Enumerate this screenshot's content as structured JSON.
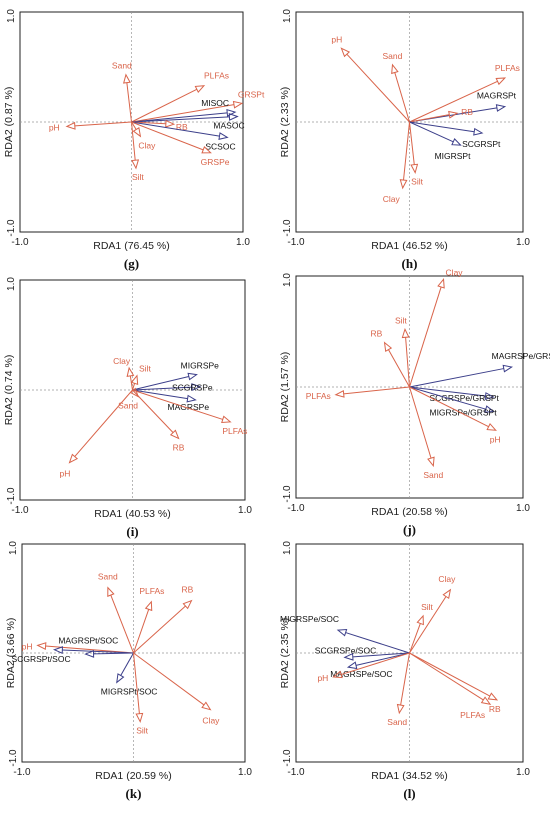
{
  "chart_data": [
    {
      "type": "scatter",
      "panel_label": "(g)",
      "xlabel": "RDA1 (76.45 %)",
      "ylabel": "RDA2 (0.87 %)",
      "xlim": [
        -1.0,
        1.0
      ],
      "ylim": [
        -1.0,
        1.0
      ],
      "x_ticks": [
        "-1.0",
        "1.0"
      ],
      "y_ticks": [
        "1.0",
        "-1.0"
      ],
      "vectors": [
        {
          "name": "Sand",
          "x": -0.05,
          "y": 0.43,
          "group": "explanatory"
        },
        {
          "name": "PLFAs",
          "x": 0.65,
          "y": 0.33,
          "group": "explanatory"
        },
        {
          "name": "GRSPt",
          "x": 0.99,
          "y": 0.17,
          "group": "explanatory"
        },
        {
          "name": "MISOC",
          "x": 0.93,
          "y": 0.09,
          "group": "response"
        },
        {
          "name": "MASOC",
          "x": 0.95,
          "y": 0.05,
          "group": "response"
        },
        {
          "name": "RB",
          "x": 0.38,
          "y": -0.02,
          "group": "explanatory"
        },
        {
          "name": "SCSOC",
          "x": 0.86,
          "y": -0.14,
          "group": "response"
        },
        {
          "name": "GRSPe",
          "x": 0.71,
          "y": -0.28,
          "group": "explanatory"
        },
        {
          "name": "pH",
          "x": -0.58,
          "y": -0.04,
          "group": "explanatory"
        },
        {
          "name": "Clay",
          "x": 0.08,
          "y": -0.13,
          "group": "explanatory"
        },
        {
          "name": "Silt",
          "x": 0.04,
          "y": -0.42,
          "group": "explanatory"
        }
      ]
    },
    {
      "type": "scatter",
      "panel_label": "(h)",
      "xlabel": "RDA1 (46.52 %)",
      "ylabel": "RDA2 (2.33 %)",
      "xlim": [
        -1.0,
        1.0
      ],
      "ylim": [
        -1.0,
        1.0
      ],
      "x_ticks": [
        "-1.0",
        "1.0"
      ],
      "y_ticks": [
        "1.0",
        "-1.0"
      ],
      "vectors": [
        {
          "name": "pH",
          "x": -0.6,
          "y": 0.67,
          "group": "explanatory"
        },
        {
          "name": "Sand",
          "x": -0.15,
          "y": 0.52,
          "group": "explanatory"
        },
        {
          "name": "PLFAs",
          "x": 0.84,
          "y": 0.4,
          "group": "explanatory"
        },
        {
          "name": "MAGRSPt",
          "x": 0.84,
          "y": 0.14,
          "group": "response"
        },
        {
          "name": "RB",
          "x": 0.42,
          "y": 0.08,
          "group": "explanatory"
        },
        {
          "name": "SCGRSPt",
          "x": 0.64,
          "y": -0.1,
          "group": "response"
        },
        {
          "name": "MIGRSPt",
          "x": 0.45,
          "y": -0.21,
          "group": "response"
        },
        {
          "name": "Silt",
          "x": 0.05,
          "y": -0.46,
          "group": "explanatory"
        },
        {
          "name": "Clay",
          "x": -0.06,
          "y": -0.6,
          "group": "explanatory"
        }
      ]
    },
    {
      "type": "scatter",
      "panel_label": "(i)",
      "xlabel": "RDA1 (40.53 %)",
      "ylabel": "RDA2 (0.74 %)",
      "xlim": [
        -1.0,
        1.0
      ],
      "ylim": [
        -1.0,
        1.0
      ],
      "x_ticks": [
        "-1.0",
        "1.0"
      ],
      "y_ticks": [
        "1.0",
        "-1.0"
      ],
      "vectors": [
        {
          "name": "Clay",
          "x": -0.03,
          "y": 0.2,
          "group": "explanatory"
        },
        {
          "name": "Silt",
          "x": 0.04,
          "y": 0.13,
          "group": "explanatory"
        },
        {
          "name": "MIGRSPe",
          "x": 0.57,
          "y": 0.14,
          "group": "response"
        },
        {
          "name": "SCGRSPe",
          "x": 0.6,
          "y": 0.03,
          "group": "response"
        },
        {
          "name": "MAGRSPe",
          "x": 0.56,
          "y": -0.09,
          "group": "response"
        },
        {
          "name": "PLFAs",
          "x": 0.87,
          "y": -0.29,
          "group": "explanatory"
        },
        {
          "name": "Sand",
          "x": 0.05,
          "y": -0.06,
          "group": "explanatory"
        },
        {
          "name": "RB",
          "x": 0.41,
          "y": -0.44,
          "group": "explanatory"
        },
        {
          "name": "pH",
          "x": -0.56,
          "y": -0.66,
          "group": "explanatory"
        }
      ]
    },
    {
      "type": "scatter",
      "panel_label": "(j)",
      "xlabel": "RDA1 (20.58 %)",
      "ylabel": "RDA2 (1.57 %)",
      "xlim": [
        -1.0,
        1.0
      ],
      "ylim": [
        -1.0,
        1.0
      ],
      "x_ticks": [
        "-1.0",
        "1.0"
      ],
      "y_ticks": [
        "1.0",
        "-1.0"
      ],
      "vectors": [
        {
          "name": "Clay",
          "x": 0.3,
          "y": 0.97,
          "group": "explanatory"
        },
        {
          "name": "Silt",
          "x": -0.04,
          "y": 0.52,
          "group": "explanatory"
        },
        {
          "name": "RB",
          "x": -0.22,
          "y": 0.4,
          "group": "explanatory"
        },
        {
          "name": "MAGRSPe/GRSPt",
          "x": 0.9,
          "y": 0.18,
          "group": "response"
        },
        {
          "name": "PLFAs",
          "x": -0.65,
          "y": -0.07,
          "group": "explanatory"
        },
        {
          "name": "SCGRSPe/GRSPt",
          "x": 0.74,
          "y": -0.09,
          "group": "response"
        },
        {
          "name": "MIGRSPe/GRSPt",
          "x": 0.74,
          "y": -0.22,
          "group": "response"
        },
        {
          "name": "pH",
          "x": 0.76,
          "y": -0.39,
          "group": "explanatory"
        },
        {
          "name": "Sand",
          "x": 0.21,
          "y": -0.71,
          "group": "explanatory"
        }
      ]
    },
    {
      "type": "scatter",
      "panel_label": "(k)",
      "xlabel": "RDA1 (20.59 %)",
      "ylabel": "RDA2 (3.66 %)",
      "xlim": [
        -1.0,
        1.0
      ],
      "ylim": [
        -1.0,
        1.0
      ],
      "x_ticks": [
        "-1.0",
        "1.0"
      ],
      "y_ticks": [
        "1.0",
        "-1.0"
      ],
      "vectors": [
        {
          "name": "Sand",
          "x": -0.23,
          "y": 0.6,
          "group": "explanatory"
        },
        {
          "name": "PLFAs",
          "x": 0.16,
          "y": 0.47,
          "group": "explanatory"
        },
        {
          "name": "RB",
          "x": 0.52,
          "y": 0.48,
          "group": "explanatory"
        },
        {
          "name": "pH",
          "x": -0.86,
          "y": 0.07,
          "group": "explanatory"
        },
        {
          "name": "MAGRSPt/SOC",
          "x": -0.71,
          "y": 0.03,
          "group": "response"
        },
        {
          "name": "SCGRSPt/SOC",
          "x": -0.43,
          "y": -0.01,
          "group": "response"
        },
        {
          "name": "MIGRSPt/SOC",
          "x": -0.15,
          "y": -0.27,
          "group": "response"
        },
        {
          "name": "Clay",
          "x": 0.69,
          "y": -0.52,
          "group": "explanatory"
        },
        {
          "name": "Silt",
          "x": 0.06,
          "y": -0.63,
          "group": "explanatory"
        }
      ]
    },
    {
      "type": "scatter",
      "panel_label": "(l)",
      "xlabel": "RDA1 (34.52 %)",
      "ylabel": "RDA2 (2.35 %)",
      "xlim": [
        -1.0,
        1.0
      ],
      "ylim": [
        -1.0,
        1.0
      ],
      "x_ticks": [
        "-1.0",
        "1.0"
      ],
      "y_ticks": [
        "1.0",
        "-1.0"
      ],
      "vectors": [
        {
          "name": "Clay",
          "x": 0.36,
          "y": 0.58,
          "group": "explanatory"
        },
        {
          "name": "Silt",
          "x": 0.12,
          "y": 0.34,
          "group": "explanatory"
        },
        {
          "name": "MIGRSPe/SOC",
          "x": -0.63,
          "y": 0.21,
          "group": "response"
        },
        {
          "name": "SCGRSPe/SOC",
          "x": -0.57,
          "y": -0.04,
          "group": "response"
        },
        {
          "name": "MAGRSPe/SOC",
          "x": -0.54,
          "y": -0.13,
          "group": "response"
        },
        {
          "name": "pH",
          "x": -0.67,
          "y": -0.22,
          "group": "explanatory"
        },
        {
          "name": "Sand",
          "x": -0.09,
          "y": -0.55,
          "group": "explanatory"
        },
        {
          "name": "PLFAs",
          "x": 0.71,
          "y": -0.47,
          "group": "explanatory"
        },
        {
          "name": "RB",
          "x": 0.77,
          "y": -0.43,
          "group": "explanatory"
        }
      ]
    }
  ],
  "colors": {
    "explanatory": "#d9644a",
    "response": "#3c3f8a",
    "explanatory_label": "#d9644a",
    "response_label": "#111111",
    "frame": "#222222",
    "zero_line": "#999999"
  }
}
